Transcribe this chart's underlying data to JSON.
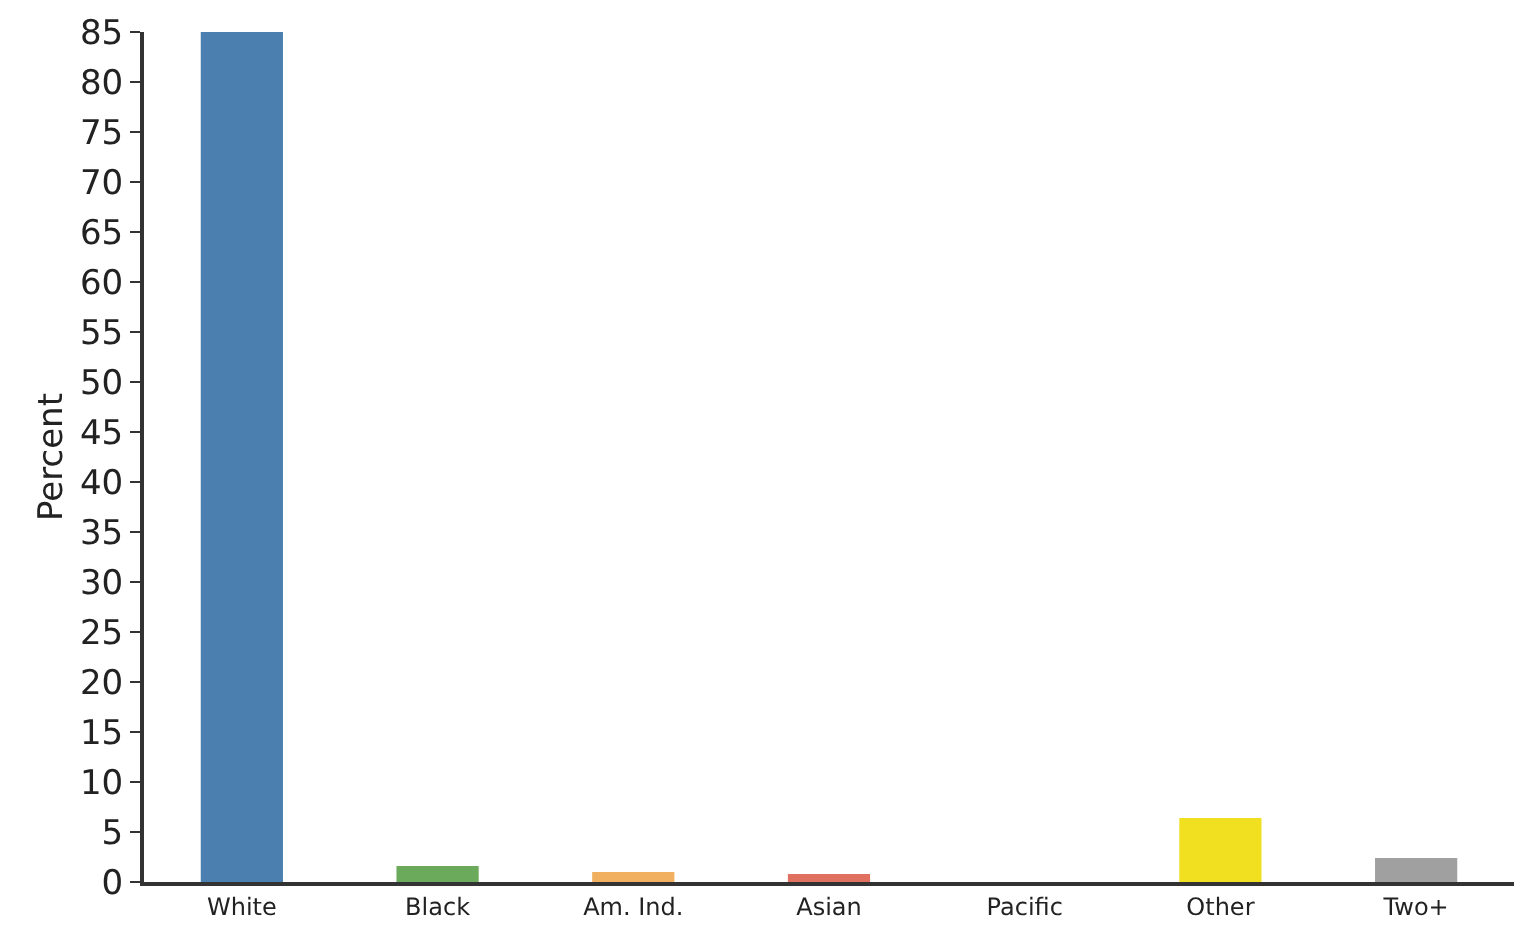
{
  "chart_data": {
    "type": "bar",
    "ylabel": "Percent",
    "categories": [
      "White",
      "Black",
      "Am. Ind.",
      "Asian",
      "Pacific",
      "Other",
      "Two+"
    ],
    "values": [
      85,
      1.6,
      1,
      0.8,
      0,
      6.4,
      2.4
    ],
    "colors": [
      "#4a7fb0",
      "#6aaa5a",
      "#f0b060",
      "#e07060",
      "#9070c0",
      "#f0e020",
      "#a0a0a0"
    ],
    "ylim": [
      0,
      85
    ],
    "yticks": [
      0,
      5,
      10,
      15,
      20,
      25,
      30,
      35,
      40,
      45,
      50,
      55,
      60,
      65,
      70,
      75,
      80,
      85
    ],
    "grid": false
  }
}
